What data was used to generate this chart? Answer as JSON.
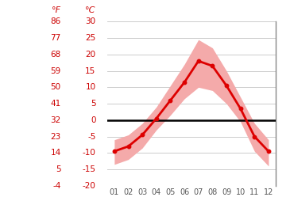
{
  "months": [
    1,
    2,
    3,
    4,
    5,
    6,
    7,
    8,
    9,
    10,
    11,
    12
  ],
  "avg_temp": [
    -9.5,
    -8.0,
    -4.5,
    0.5,
    6.0,
    11.5,
    18.0,
    16.5,
    10.5,
    3.5,
    -5.0,
    -9.5
  ],
  "max_temp": [
    -6.0,
    -4.5,
    -1.0,
    4.0,
    10.5,
    17.0,
    24.5,
    22.0,
    15.0,
    7.0,
    -1.0,
    -6.0
  ],
  "min_temp": [
    -13.5,
    -12.0,
    -8.5,
    -3.0,
    1.5,
    6.5,
    10.0,
    9.0,
    5.0,
    -0.5,
    -9.5,
    -14.0
  ],
  "line_color": "#dd0000",
  "band_color": "#f4aaaa",
  "zero_line_color": "#000000",
  "grid_color": "#cccccc",
  "label_color": "#cc0000",
  "background_color": "#ffffff",
  "ylim": [
    -20,
    30
  ],
  "yticks_c": [
    -20,
    -15,
    -10,
    -5,
    0,
    5,
    10,
    15,
    20,
    25,
    30
  ],
  "yticks_f": [
    -4,
    5,
    14,
    23,
    32,
    41,
    50,
    59,
    68,
    77,
    86
  ],
  "xtick_labels": [
    "01",
    "02",
    "03",
    "04",
    "05",
    "06",
    "07",
    "08",
    "09",
    "10",
    "11",
    "12"
  ]
}
